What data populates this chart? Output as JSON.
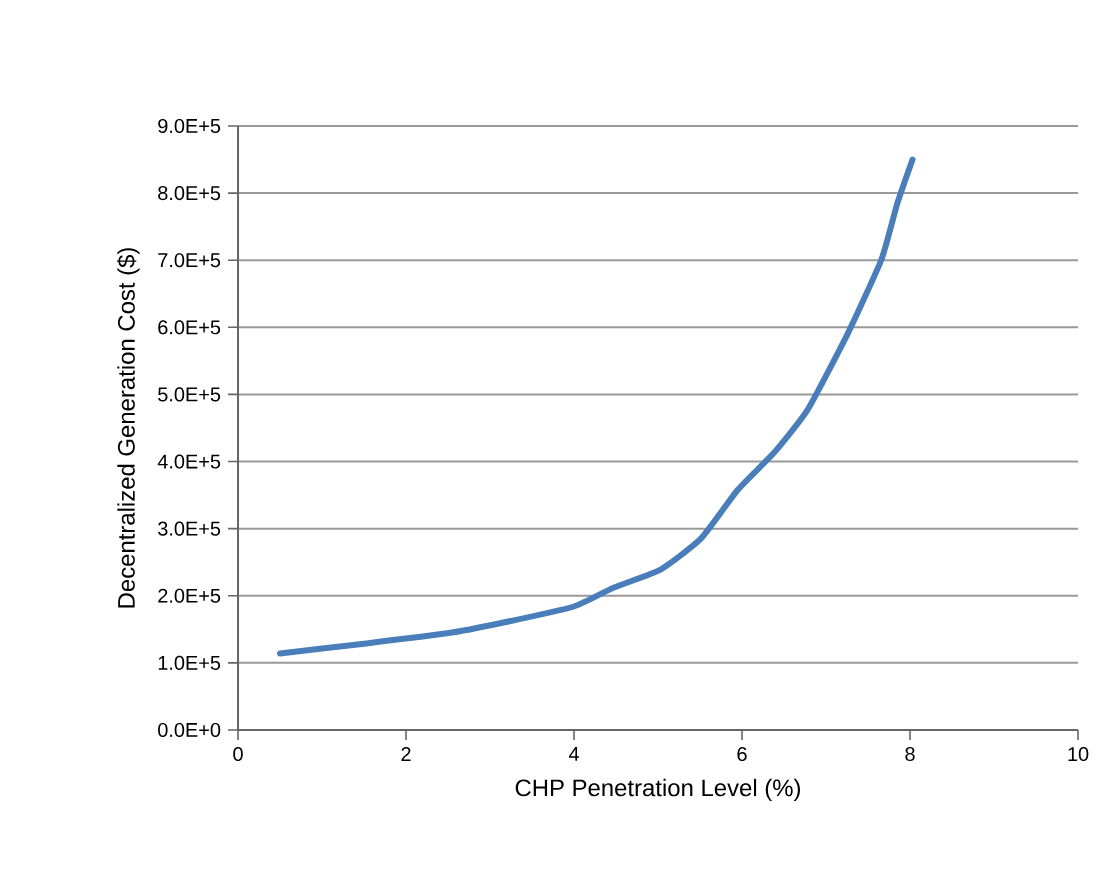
{
  "chart_data": {
    "type": "line",
    "xlabel": "CHP Penetration Level (%)",
    "ylabel": "Decentralized Generation Cost ($)",
    "x": [
      0.5,
      1.53,
      2.49,
      3.12,
      4.0,
      4.47,
      5.03,
      5.51,
      5.95,
      6.38,
      6.78,
      7.26,
      7.66,
      7.85,
      8.03
    ],
    "series": [
      {
        "color": "#4a7ebb",
        "values": [
          114000,
          129000,
          144000,
          159000,
          184000,
          212000,
          239000,
          285000,
          358000,
          413000,
          477000,
          591000,
          701000,
          785000,
          850000
        ]
      }
    ],
    "xlim": [
      0,
      10
    ],
    "xticks": [
      0,
      2,
      4,
      6,
      8,
      10
    ],
    "ylim": [
      0,
      900000
    ],
    "yticks": [
      {
        "value": 0,
        "label": "0.0E+0"
      },
      {
        "value": 100000,
        "label": "1.0E+5"
      },
      {
        "value": 200000,
        "label": "2.0E+5"
      },
      {
        "value": 300000,
        "label": "3.0E+5"
      },
      {
        "value": 400000,
        "label": "4.0E+5"
      },
      {
        "value": 500000,
        "label": "5.0E+5"
      },
      {
        "value": 600000,
        "label": "6.0E+5"
      },
      {
        "value": 700000,
        "label": "7.0E+5"
      },
      {
        "value": 800000,
        "label": "8.0E+5"
      },
      {
        "value": 900000,
        "label": "9.0E+5"
      }
    ],
    "grid": "y",
    "marker": "none",
    "line_style": "solid"
  }
}
